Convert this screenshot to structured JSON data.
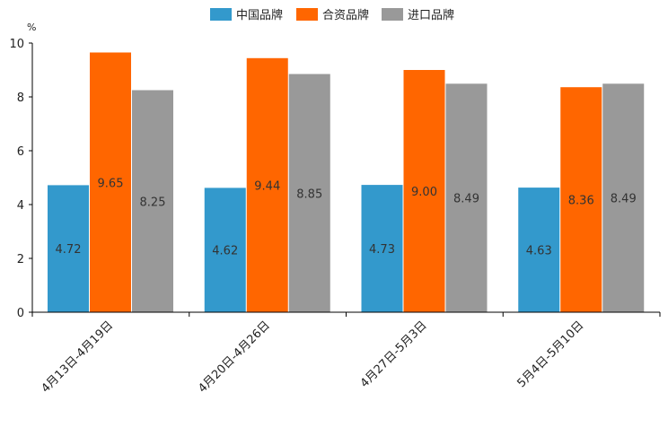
{
  "chart_data": {
    "type": "bar",
    "unit": "%",
    "categories": [
      "4月13日-4月19日",
      "4月20日-4月26日",
      "4月27日-5月3日",
      "5月4日-5月10日"
    ],
    "series": [
      {
        "name": "中国品牌",
        "color": "#3399CC",
        "values": [
          4.72,
          4.62,
          4.73,
          4.63
        ],
        "labels": [
          "4.72",
          "4.62",
          "4.73",
          "4.63"
        ]
      },
      {
        "name": "合资品牌",
        "color": "#FF6600",
        "values": [
          9.65,
          9.44,
          9.0,
          8.36
        ],
        "labels": [
          "9.65",
          "9.44",
          "9.00",
          "8.36"
        ]
      },
      {
        "name": "进口品牌",
        "color": "#999999",
        "values": [
          8.25,
          8.85,
          8.49,
          8.49
        ],
        "labels": [
          "8.25",
          "8.85",
          "8.49",
          "8.49"
        ]
      }
    ],
    "ylim": [
      0,
      10
    ],
    "yticks": [
      0,
      2,
      4,
      6,
      8,
      10
    ],
    "grid": false,
    "legend": "top-center"
  }
}
